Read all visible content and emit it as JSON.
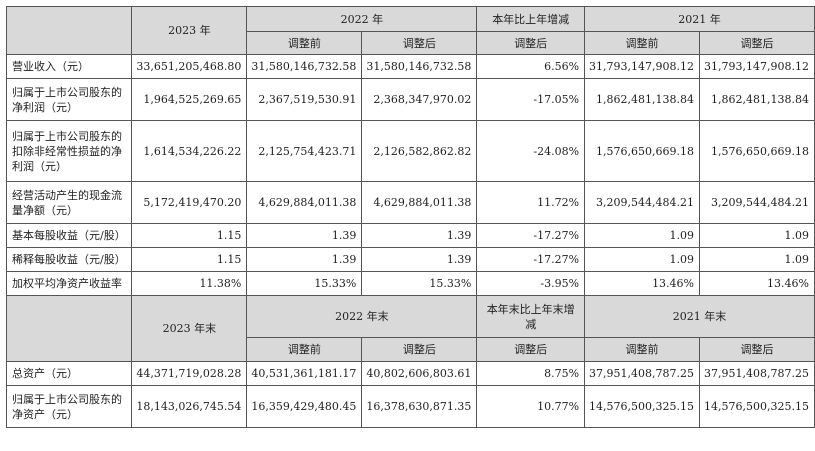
{
  "header1": {
    "col_2023": "2023 年",
    "col_2022": "2022 年",
    "col_change": "本年比上年增减",
    "col_2021": "2021 年",
    "sub_before": "调整前",
    "sub_after": "调整后",
    "sub_change": "调整后"
  },
  "rows1": [
    {
      "label": "营业收入（元）",
      "v2023": "33,651,205,468.80",
      "v2022_before": "31,580,146,732.58",
      "v2022_after": "31,580,146,732.58",
      "change": "6.56%",
      "v2021_before": "31,793,147,908.12",
      "v2021_after": "31,793,147,908.12"
    },
    {
      "label": "归属于上市公司股东的净利润（元）",
      "v2023": "1,964,525,269.65",
      "v2022_before": "2,367,519,530.91",
      "v2022_after": "2,368,347,970.02",
      "change": "-17.05%",
      "v2021_before": "1,862,481,138.84",
      "v2021_after": "1,862,481,138.84"
    },
    {
      "label": "归属于上市公司股东的扣除非经常性损益的净利润（元）",
      "v2023": "1,614,534,226.22",
      "v2022_before": "2,125,754,423.71",
      "v2022_after": "2,126,582,862.82",
      "change": "-24.08%",
      "v2021_before": "1,576,650,669.18",
      "v2021_after": "1,576,650,669.18"
    },
    {
      "label": "经营活动产生的现金流量净额（元）",
      "v2023": "5,172,419,470.20",
      "v2022_before": "4,629,884,011.38",
      "v2022_after": "4,629,884,011.38",
      "change": "11.72%",
      "v2021_before": "3,209,544,484.21",
      "v2021_after": "3,209,544,484.21"
    },
    {
      "label": "基本每股收益（元/股）",
      "v2023": "1.15",
      "v2022_before": "1.39",
      "v2022_after": "1.39",
      "change": "-17.27%",
      "v2021_before": "1.09",
      "v2021_after": "1.09"
    },
    {
      "label": "稀释每股收益（元/股）",
      "v2023": "1.15",
      "v2022_before": "1.39",
      "v2022_after": "1.39",
      "change": "-17.27%",
      "v2021_before": "1.09",
      "v2021_after": "1.09"
    },
    {
      "label": "加权平均净资产收益率",
      "v2023": "11.38%",
      "v2022_before": "15.33%",
      "v2022_after": "15.33%",
      "change": "-3.95%",
      "v2021_before": "13.46%",
      "v2021_after": "13.46%"
    }
  ],
  "header2": {
    "col_2023": "2023 年末",
    "col_2022": "2022 年末",
    "col_change": "本年末比上年末增减",
    "col_2021": "2021 年末",
    "sub_before": "调整前",
    "sub_after": "调整后",
    "sub_change": "调整后"
  },
  "rows2": [
    {
      "label": "总资产（元）",
      "v2023": "44,371,719,028.28",
      "v2022_before": "40,531,361,181.17",
      "v2022_after": "40,802,606,803.61",
      "change": "8.75%",
      "v2021_before": "37,951,408,787.25",
      "v2021_after": "37,951,408,787.25"
    },
    {
      "label": "归属于上市公司股东的净资产（元）",
      "v2023": "18,143,026,745.54",
      "v2022_before": "16,359,429,480.45",
      "v2022_after": "16,378,630,871.35",
      "change": "10.77%",
      "v2021_before": "14,576,500,325.15",
      "v2021_after": "14,576,500,325.15"
    }
  ]
}
